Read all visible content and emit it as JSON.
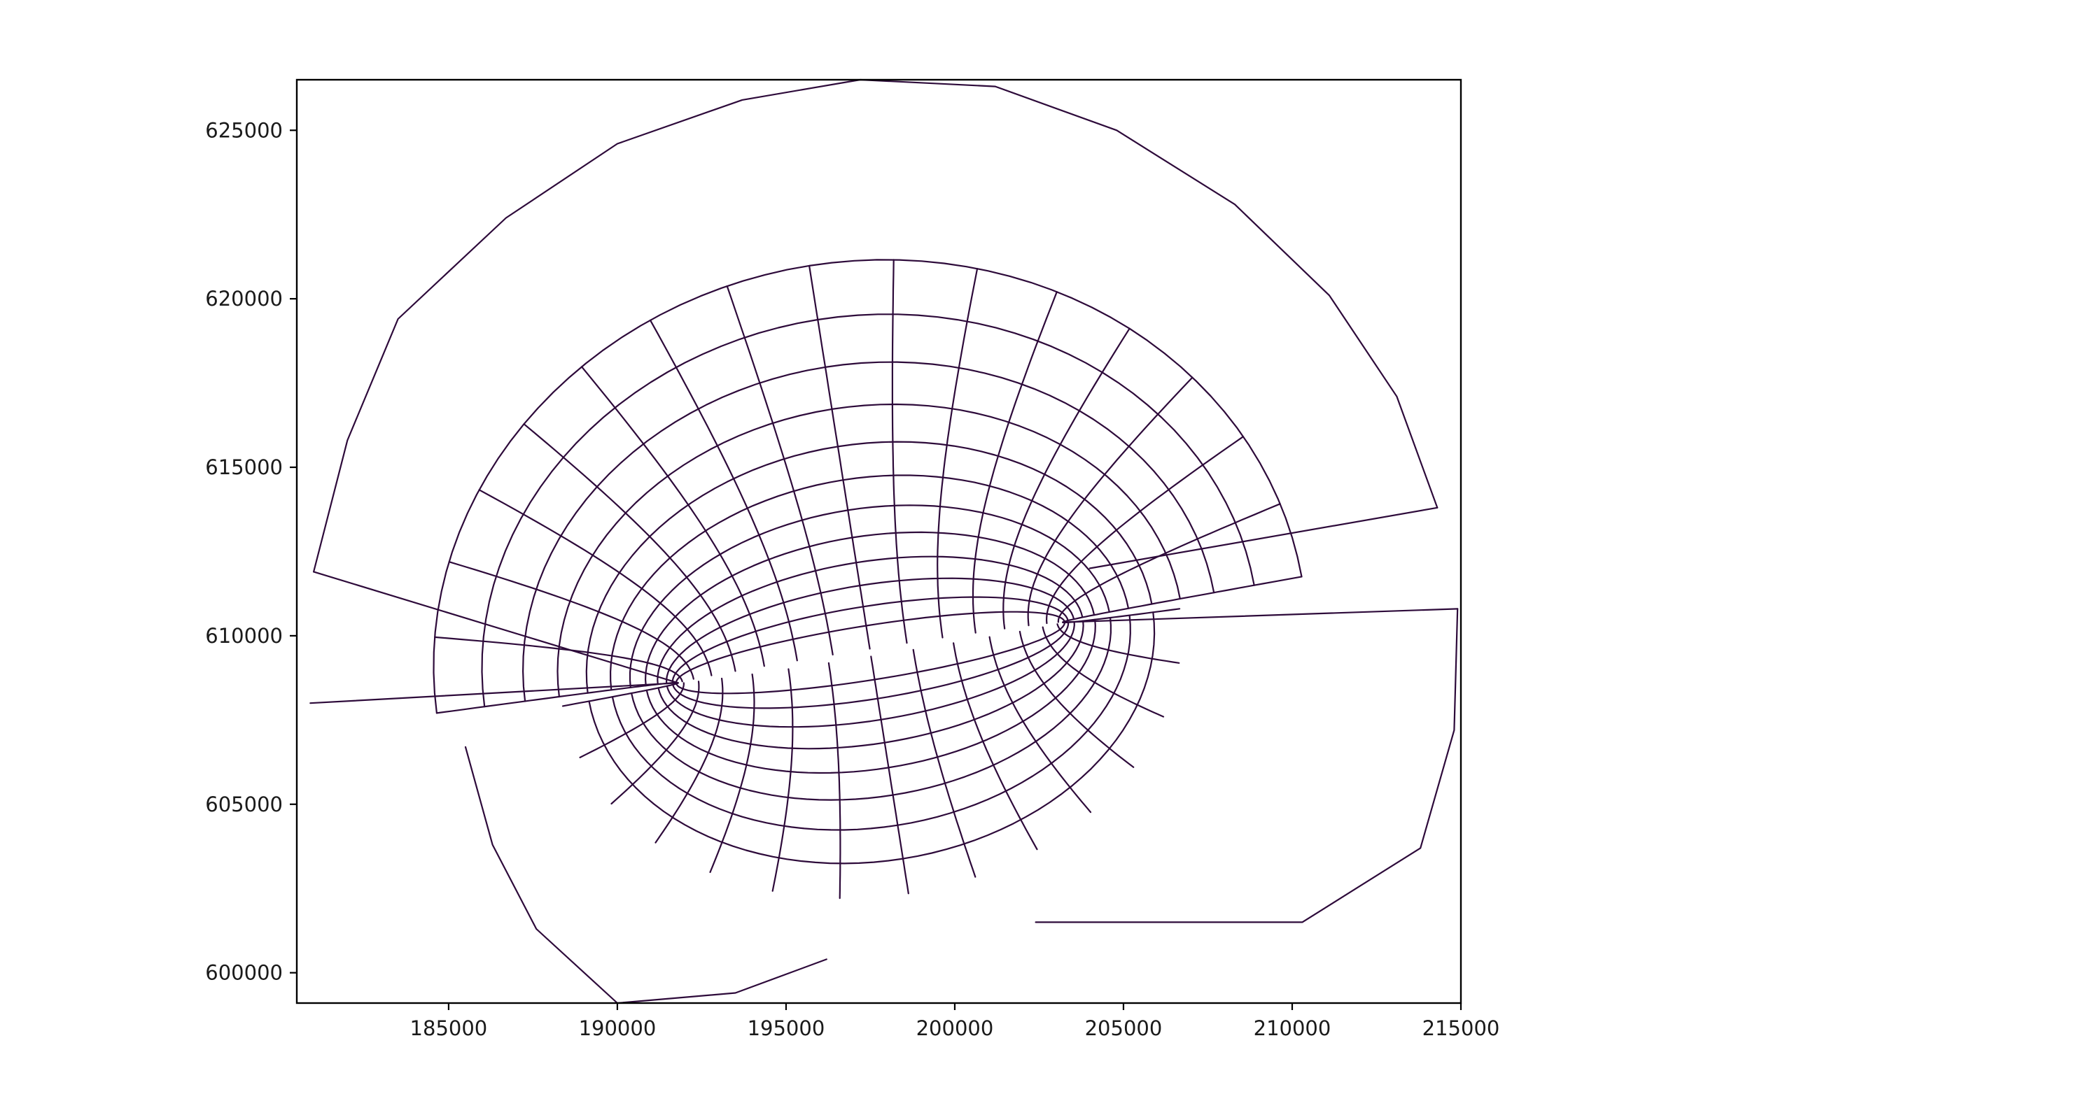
{
  "chart_data": {
    "type": "line",
    "title": "",
    "xlabel": "",
    "ylabel": "",
    "xlim": [
      180500,
      215000
    ],
    "ylim": [
      599100,
      626500
    ],
    "grid": false,
    "legend": "none",
    "line_color": "#2d0a3a",
    "x_ticks": [
      185000,
      190000,
      195000,
      200000,
      205000,
      210000,
      215000
    ],
    "y_ticks": [
      600000,
      605000,
      610000,
      615000,
      620000,
      625000
    ],
    "x_tick_labels": [
      "185000",
      "190000",
      "195000",
      "200000",
      "205000",
      "210000",
      "215000"
    ],
    "y_tick_labels": [
      "600000",
      "605000",
      "610000",
      "615000",
      "620000",
      "625000"
    ],
    "mesh": {
      "description_values": "curvilinear grid nodes in data units",
      "left_wall": {
        "tip": [
          191800,
          608600
        ],
        "far_top": [
          181000,
          611900
        ],
        "far_bottom": [
          180900,
          608000
        ],
        "inner_bottom": [
          185500,
          606700
        ]
      },
      "right_wall": {
        "tip": [
          203200,
          610400
        ],
        "far_top": [
          214300,
          613800
        ],
        "far_bottom": [
          214900,
          610800
        ],
        "inner_top": [
          204000,
          612000
        ]
      },
      "outer_arc_top": [
        [
          181000,
          611900
        ],
        [
          182000,
          615800
        ],
        [
          183500,
          619400
        ],
        [
          186700,
          622400
        ],
        [
          190000,
          624600
        ],
        [
          193700,
          625900
        ],
        [
          197200,
          626500
        ],
        [
          201200,
          626300
        ],
        [
          204800,
          625000
        ],
        [
          208300,
          622800
        ],
        [
          211100,
          620100
        ],
        [
          213100,
          617100
        ],
        [
          214300,
          613800
        ]
      ],
      "outer_arc_bottom_left": [
        [
          185500,
          606700
        ],
        [
          186300,
          603800
        ],
        [
          187600,
          601300
        ],
        [
          190000,
          599100
        ],
        [
          193500,
          599400
        ],
        [
          196200,
          600400
        ]
      ],
      "outer_arc_bottom_right": [
        [
          202400,
          601500
        ],
        [
          205300,
          601500
        ],
        [
          210300,
          601500
        ],
        [
          213800,
          603700
        ],
        [
          214800,
          607200
        ],
        [
          214900,
          610800
        ]
      ]
    }
  }
}
